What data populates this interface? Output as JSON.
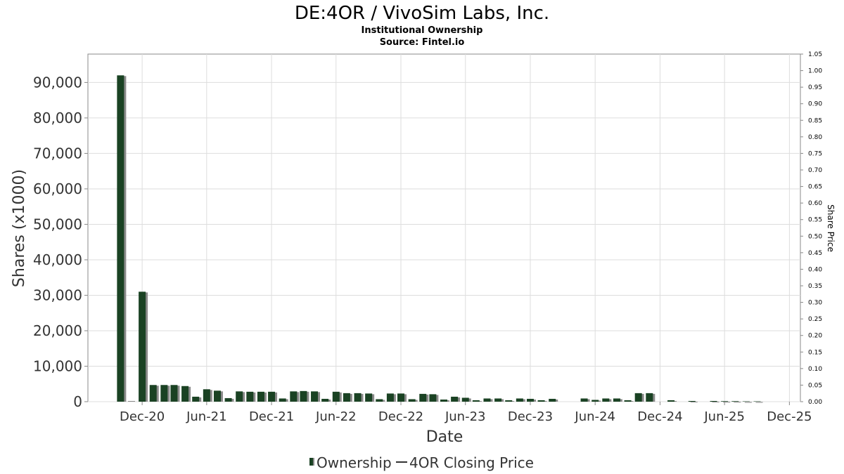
{
  "chart_data": {
    "type": "bar",
    "title": "DE:4OR / VivoSim Labs, Inc.",
    "subtitle_lines": [
      "Institutional Ownership",
      "Source: Fintel.io"
    ],
    "xlabel": "Date",
    "ylabel": "Shares (x1000)",
    "y2label": "Share Price",
    "ylim": [
      0,
      98000
    ],
    "y2lim": [
      0,
      1.05
    ],
    "grid": true,
    "x_tick_labels": [
      "Dec-20",
      "Jun-21",
      "Dec-21",
      "Jun-22",
      "Dec-22",
      "Jun-23",
      "Dec-23",
      "Jun-24",
      "Dec-24",
      "Jun-25",
      "Dec-25"
    ],
    "y_tick_labels": [
      "0",
      "10,000",
      "20,000",
      "30,000",
      "40,000",
      "50,000",
      "60,000",
      "70,000",
      "80,000",
      "90,000"
    ],
    "y2_tick_labels": [
      "0.00",
      "0.05",
      "0.10",
      "0.15",
      "0.20",
      "0.25",
      "0.30",
      "0.35",
      "0.40",
      "0.45",
      "0.50",
      "0.55",
      "0.60",
      "0.65",
      "0.70",
      "0.75",
      "0.80",
      "0.85",
      "0.90",
      "0.95",
      "1.00",
      "1.05"
    ],
    "series": [
      {
        "name": "Ownership",
        "color": "#1a4223",
        "points": [
          {
            "date": "2020-10-01",
            "value": 92000
          },
          {
            "date": "2020-11-01",
            "value": 0
          },
          {
            "date": "2020-12-01",
            "value": 31000
          },
          {
            "date": "2021-01-01",
            "value": 4700
          },
          {
            "date": "2021-02-01",
            "value": 4700
          },
          {
            "date": "2021-03-01",
            "value": 4700
          },
          {
            "date": "2021-04-01",
            "value": 4400
          },
          {
            "date": "2021-05-01",
            "value": 1400
          },
          {
            "date": "2021-06-01",
            "value": 3500
          },
          {
            "date": "2021-07-01",
            "value": 3100
          },
          {
            "date": "2021-08-01",
            "value": 1000
          },
          {
            "date": "2021-09-01",
            "value": 2900
          },
          {
            "date": "2021-10-01",
            "value": 2800
          },
          {
            "date": "2021-11-01",
            "value": 2800
          },
          {
            "date": "2021-12-01",
            "value": 2800
          },
          {
            "date": "2022-01-01",
            "value": 900
          },
          {
            "date": "2022-02-01",
            "value": 2900
          },
          {
            "date": "2022-03-01",
            "value": 3000
          },
          {
            "date": "2022-04-01",
            "value": 2900
          },
          {
            "date": "2022-05-01",
            "value": 800
          },
          {
            "date": "2022-06-01",
            "value": 2800
          },
          {
            "date": "2022-07-01",
            "value": 2400
          },
          {
            "date": "2022-08-01",
            "value": 2400
          },
          {
            "date": "2022-09-01",
            "value": 2300
          },
          {
            "date": "2022-10-01",
            "value": 700
          },
          {
            "date": "2022-11-01",
            "value": 2300
          },
          {
            "date": "2022-12-01",
            "value": 2300
          },
          {
            "date": "2023-01-01",
            "value": 700
          },
          {
            "date": "2023-02-01",
            "value": 2200
          },
          {
            "date": "2023-03-01",
            "value": 2100
          },
          {
            "date": "2023-04-01",
            "value": 600
          },
          {
            "date": "2023-05-01",
            "value": 1400
          },
          {
            "date": "2023-06-01",
            "value": 1100
          },
          {
            "date": "2023-07-01",
            "value": 400
          },
          {
            "date": "2023-08-01",
            "value": 900
          },
          {
            "date": "2023-09-01",
            "value": 900
          },
          {
            "date": "2023-10-01",
            "value": 400
          },
          {
            "date": "2023-11-01",
            "value": 900
          },
          {
            "date": "2023-12-01",
            "value": 800
          },
          {
            "date": "2024-01-01",
            "value": 400
          },
          {
            "date": "2024-02-01",
            "value": 800
          },
          {
            "date": "2024-05-01",
            "value": 900
          },
          {
            "date": "2024-06-01",
            "value": 500
          },
          {
            "date": "2024-07-01",
            "value": 900
          },
          {
            "date": "2024-08-01",
            "value": 900
          },
          {
            "date": "2024-09-01",
            "value": 400
          },
          {
            "date": "2024-10-01",
            "value": 2400
          },
          {
            "date": "2024-11-01",
            "value": 2400
          },
          {
            "date": "2025-01-01",
            "value": 400
          },
          {
            "date": "2025-03-01",
            "value": 200
          },
          {
            "date": "2025-05-01",
            "value": 200
          },
          {
            "date": "2025-06-01",
            "value": 150
          },
          {
            "date": "2025-07-01",
            "value": 150
          },
          {
            "date": "2025-08-01",
            "value": 100
          },
          {
            "date": "2025-09-01",
            "value": 100
          }
        ]
      },
      {
        "name": "4OR Closing Price",
        "color": "#333333",
        "points": []
      }
    ],
    "legend": {
      "position": "bottom-center"
    }
  },
  "colors": {
    "bar": "#1a4223",
    "bar_shadow": "#8a8a8a",
    "grid": "#dddddd",
    "axis": "#888888"
  }
}
